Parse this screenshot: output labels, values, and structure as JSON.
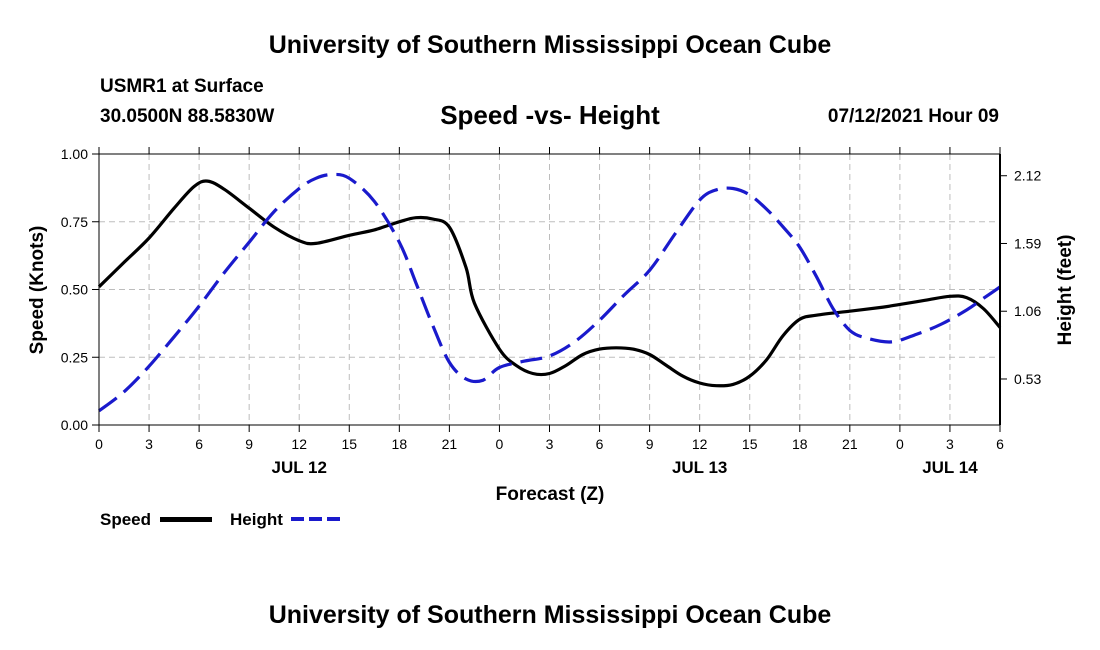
{
  "page": {
    "top_title": "University of Southern Mississippi Ocean Cube",
    "bottom_title": "University of Southern Mississippi Ocean Cube",
    "station": "USMR1 at Surface",
    "coordinates": "30.0500N  88.5830W",
    "datetime": "07/12/2021 Hour 09"
  },
  "chart_data": {
    "type": "line",
    "title": "Speed -vs- Height",
    "xlabel": "Forecast (Z)",
    "ylabel": "Speed (Knots)",
    "y2label": "Height (feet)",
    "x_unit": "forecast hours from JUL 12 00Z",
    "xlim": [
      0,
      54
    ],
    "ylim": [
      0,
      1.0
    ],
    "y2lim": [
      0.17,
      2.29
    ],
    "x_ticks": [
      0,
      3,
      6,
      9,
      12,
      15,
      18,
      21,
      24,
      27,
      30,
      33,
      36,
      39,
      42,
      45,
      48,
      51,
      54
    ],
    "x_tick_labels": [
      "0",
      "3",
      "6",
      "9",
      "12",
      "15",
      "18",
      "21",
      "0",
      "3",
      "6",
      "9",
      "12",
      "15",
      "18",
      "21",
      "0",
      "3",
      "6"
    ],
    "day_labels": [
      {
        "x": 12,
        "label": "JUL 12"
      },
      {
        "x": 36,
        "label": "JUL 13"
      },
      {
        "x": 51,
        "label": "JUL 14"
      }
    ],
    "y_ticks": [
      0.0,
      0.25,
      0.5,
      0.75,
      1.0
    ],
    "y_tick_labels": [
      "0.00",
      "0.25",
      "0.50",
      "0.75",
      "1.00"
    ],
    "y2_ticks": [
      0.53,
      1.06,
      1.59,
      2.12
    ],
    "y2_tick_labels": [
      "0.53",
      "1.06",
      "1.59",
      "2.12"
    ],
    "grid": true,
    "series": [
      {
        "name": "Speed",
        "axis": "left",
        "color": "#000000",
        "dashed": false,
        "x": [
          0,
          1.5,
          3,
          4.5,
          5.7,
          6.5,
          7.5,
          9,
          10.5,
          12,
          13,
          15,
          16.5,
          18,
          19,
          20,
          21,
          22,
          22.5,
          24,
          25,
          26,
          27,
          28,
          29,
          30,
          31,
          32,
          33,
          34,
          35,
          36,
          37,
          38,
          39,
          40,
          41,
          42,
          43,
          45,
          47,
          48,
          49.5,
          51,
          52,
          53,
          54
        ],
        "values": [
          0.51,
          0.6,
          0.69,
          0.8,
          0.88,
          0.9,
          0.87,
          0.8,
          0.73,
          0.68,
          0.67,
          0.7,
          0.72,
          0.75,
          0.765,
          0.76,
          0.73,
          0.58,
          0.45,
          0.28,
          0.22,
          0.19,
          0.19,
          0.22,
          0.26,
          0.28,
          0.285,
          0.28,
          0.26,
          0.22,
          0.18,
          0.155,
          0.145,
          0.15,
          0.18,
          0.24,
          0.33,
          0.39,
          0.405,
          0.42,
          0.435,
          0.445,
          0.46,
          0.475,
          0.47,
          0.43,
          0.36
        ]
      },
      {
        "name": "Height",
        "axis": "right",
        "color": "#1a1acc",
        "dashed": true,
        "x": [
          0,
          1.5,
          3,
          4.5,
          6,
          7.5,
          9,
          10.5,
          12,
          13,
          14,
          15,
          16.5,
          18,
          19,
          20,
          21,
          22,
          23,
          24,
          25.5,
          27,
          28.5,
          30,
          31.5,
          33,
          34.5,
          36,
          37,
          38,
          39,
          40,
          41,
          42,
          43,
          44,
          45,
          46,
          47.5,
          49,
          50.5,
          52,
          53,
          54
        ],
        "values": [
          0.28,
          0.43,
          0.63,
          0.86,
          1.1,
          1.36,
          1.6,
          1.84,
          2.02,
          2.1,
          2.13,
          2.1,
          1.92,
          1.6,
          1.28,
          0.95,
          0.66,
          0.53,
          0.52,
          0.62,
          0.67,
          0.71,
          0.82,
          0.99,
          1.19,
          1.38,
          1.66,
          1.93,
          2.01,
          2.02,
          1.97,
          1.86,
          1.72,
          1.56,
          1.33,
          1.08,
          0.91,
          0.85,
          0.82,
          0.88,
          0.96,
          1.07,
          1.16,
          1.25
        ]
      }
    ]
  }
}
